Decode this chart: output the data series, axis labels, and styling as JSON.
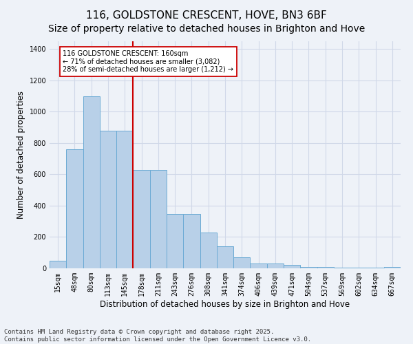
{
  "title": "116, GOLDSTONE CRESCENT, HOVE, BN3 6BF",
  "subtitle": "Size of property relative to detached houses in Brighton and Hove",
  "xlabel": "Distribution of detached houses by size in Brighton and Hove",
  "ylabel": "Number of detached properties",
  "categories": [
    "15sqm",
    "48sqm",
    "80sqm",
    "113sqm",
    "145sqm",
    "178sqm",
    "211sqm",
    "243sqm",
    "276sqm",
    "308sqm",
    "341sqm",
    "374sqm",
    "406sqm",
    "439sqm",
    "471sqm",
    "504sqm",
    "537sqm",
    "569sqm",
    "602sqm",
    "634sqm",
    "667sqm"
  ],
  "bar_heights": [
    50,
    760,
    1100,
    880,
    880,
    630,
    630,
    345,
    345,
    230,
    140,
    70,
    30,
    30,
    20,
    10,
    10,
    5,
    5,
    3,
    10
  ],
  "bar_color": "#b8d0e8",
  "bar_edge_color": "#6aaad4",
  "vline_color": "#cc0000",
  "annotation_text": "116 GOLDSTONE CRESCENT: 160sqm\n← 71% of detached houses are smaller (3,082)\n28% of semi-detached houses are larger (1,212) →",
  "annotation_box_color": "#ffffff",
  "annotation_box_edge": "#cc0000",
  "ylim": [
    0,
    1450
  ],
  "yticks": [
    0,
    200,
    400,
    600,
    800,
    1000,
    1200,
    1400
  ],
  "footer": "Contains HM Land Registry data © Crown copyright and database right 2025.\nContains public sector information licensed under the Open Government Licence v3.0.",
  "bg_color": "#eef2f8",
  "grid_color": "#d0d8e8",
  "title_fontsize": 11,
  "axis_label_fontsize": 8.5,
  "tick_fontsize": 7,
  "footer_fontsize": 6.5,
  "vline_xindex": 4.5
}
